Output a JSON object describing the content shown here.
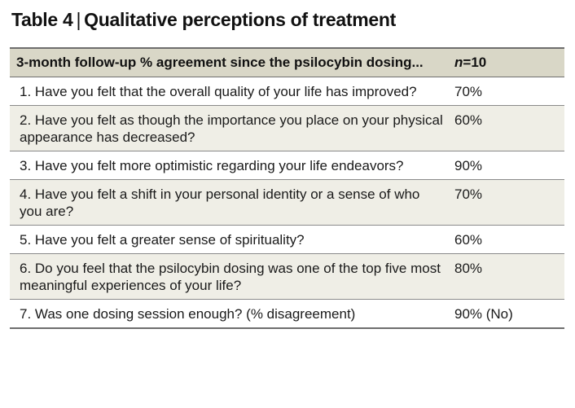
{
  "title": {
    "label": "Table 4",
    "separator": "|",
    "text": "Qualitative perceptions of treatment"
  },
  "header": {
    "question": "3-month follow-up % agreement since the psilocybin dosing...",
    "n_label": "n",
    "n_value": "=10"
  },
  "rows": [
    {
      "question": "1. Have you felt that the overall quality of your life has improved?",
      "value": "70%"
    },
    {
      "question": "2. Have you felt as though the importance you place on your physical appearance has decreased?",
      "value": "60%"
    },
    {
      "question": "3. Have you felt more optimistic regarding your life endeavors?",
      "value": "90%"
    },
    {
      "question": "4. Have you felt a shift in your personal identity or a sense of who you are?",
      "value": "70%"
    },
    {
      "question": "5. Have you felt a greater sense of spirituality?",
      "value": "60%"
    },
    {
      "question": "6. Do you feel that the psilocybin dosing was one of the top five most meaningful experiences of your life?",
      "value": "80%"
    },
    {
      "question": "7. Was one dosing session enough? (% disagreement)",
      "value": "90% (No)"
    }
  ],
  "colors": {
    "header_bg": "#d9d7c7",
    "shaded_row_bg": "#efeee6",
    "rule": "#6e6e6e"
  }
}
